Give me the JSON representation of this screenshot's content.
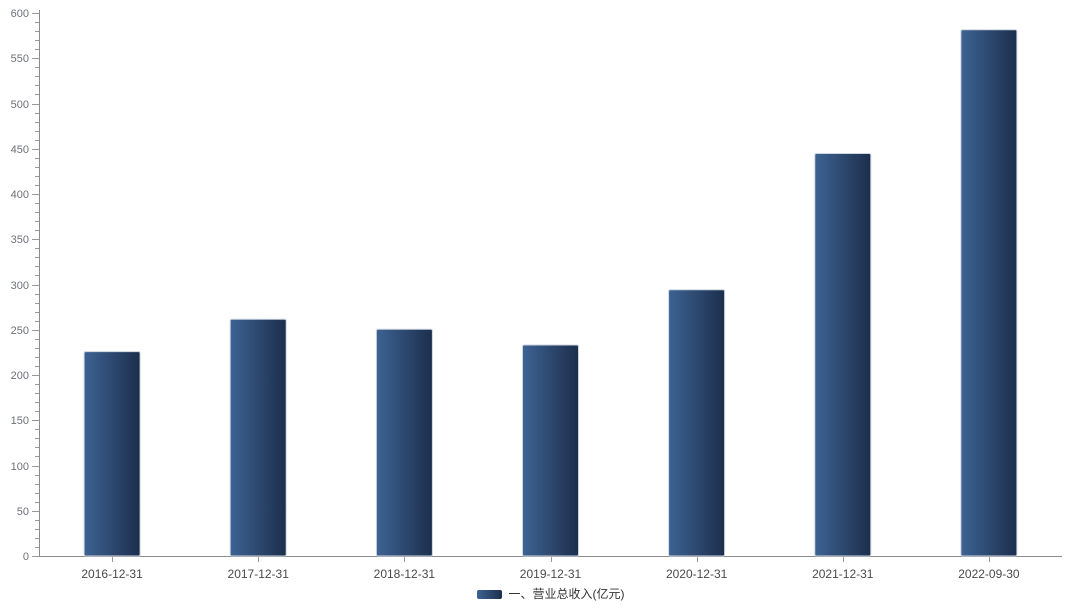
{
  "chart_data": {
    "type": "bar",
    "title": "",
    "categories": [
      "2016-12-31",
      "2017-12-31",
      "2018-12-31",
      "2019-12-31",
      "2020-12-31",
      "2021-12-31",
      "2022-09-30"
    ],
    "series": [
      {
        "name": "一、营业总收入(亿元)",
        "values": [
          225.9,
          261.6,
          250.5,
          233.2,
          294.2,
          444.8,
          581.5
        ]
      }
    ],
    "xlabel": "",
    "ylabel": "",
    "ylim": [
      0,
      600
    ],
    "y_major_step": 50,
    "y_minor_step": 10,
    "y_tick_labels": [
      "0",
      "50",
      "100",
      "150",
      "200",
      "250",
      "300",
      "350",
      "400",
      "450",
      "500",
      "550",
      "600"
    ],
    "grid": false,
    "legend_position": "bottom",
    "legend_entries": [
      "一、营业总收入(亿元)"
    ],
    "colors": {
      "bar_gradient_left": "#3D6393",
      "bar_gradient_right": "#1C2E4C",
      "bar_border": "#CDD5E0",
      "axis_line": "#8C8C8C",
      "tick": "#999999",
      "y_label": "#6E7079",
      "x_label": "#4A4A4A",
      "legend_text": "#333333",
      "background": "#FFFFFF"
    }
  }
}
